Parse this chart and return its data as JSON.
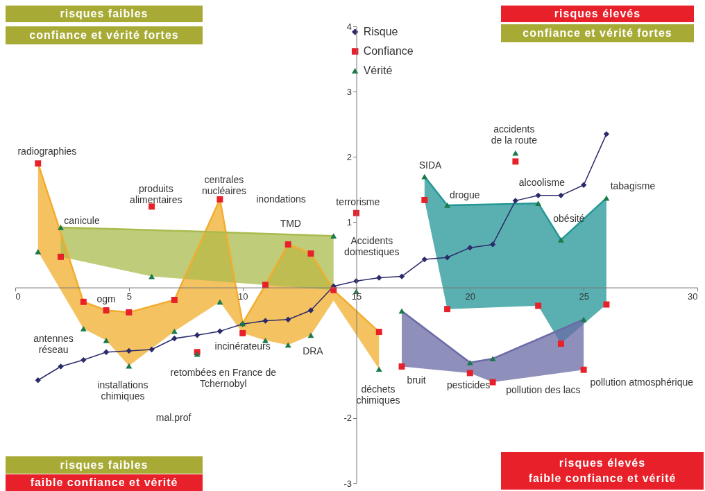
{
  "chart_data": {
    "type": "scatter",
    "xlim": [
      0,
      30
    ],
    "xticks": [
      0,
      5,
      10,
      15,
      20,
      25,
      30
    ],
    "ylim": [
      -3,
      4
    ],
    "yticks": [
      -3,
      -2,
      {
        "value": 0,
        "label": null
      },
      1,
      2,
      3,
      4
    ],
    "grid": false,
    "legend": "top",
    "series": [
      {
        "type": "line",
        "marker": "none",
        "color": "#f2ad2e",
        "x": [
          1,
          3,
          4,
          5,
          7,
          9,
          10,
          11,
          12,
          13,
          14,
          16
        ],
        "values": [
          1.9,
          -0.22,
          -0.35,
          -0.38,
          -0.19,
          1.35,
          -0.55,
          0.04,
          0.66,
          0.52,
          -0.04,
          -0.68
        ],
        "upper": [
          1.9,
          -0.22,
          -0.35,
          -0.38,
          -0.19,
          1.35,
          -0.55,
          0.04,
          0.66,
          0.52,
          -0.04,
          -0.68
        ],
        "lower": [
          0.55,
          -0.63,
          -0.81,
          -1.2,
          -0.67,
          -0.22,
          -0.7,
          -0.81,
          -0.88,
          -0.73,
          -0.2,
          -1.25
        ]
      },
      {
        "type": "line",
        "marker": "none",
        "color": "#a9bb4e",
        "x": [
          2,
          6,
          14
        ],
        "values": [
          0.92,
          0.88,
          0.79
        ],
        "upper": [
          0.92,
          0.88,
          0.79
        ],
        "lower": [
          0.47,
          0.17,
          -0.04
        ]
      },
      {
        "type": "line",
        "marker": "none",
        "color": "#239696",
        "x": [
          18,
          19,
          23,
          24,
          26
        ],
        "values": [
          1.7,
          1.26,
          1.29,
          0.73,
          1.37
        ],
        "upper": [
          1.7,
          1.26,
          1.29,
          0.73,
          1.37
        ],
        "lower": [
          1.34,
          -0.33,
          -0.28,
          -0.86,
          -0.26
        ]
      },
      {
        "type": "line",
        "marker": "none",
        "color": "#6a6aa6",
        "x": [
          17,
          20,
          21,
          25
        ],
        "values": [
          -0.36,
          -1.15,
          -1.09,
          -0.49
        ],
        "upper": [
          -0.36,
          -1.15,
          -1.09,
          -0.49
        ],
        "lower": [
          -1.21,
          -1.31,
          -1.45,
          -1.26
        ]
      },
      {
        "name": "Risque",
        "type": "line",
        "marker": "diamond",
        "color": "#2b2b6b",
        "x": [
          1,
          2,
          3,
          4,
          5,
          6,
          7,
          8,
          9,
          10,
          11,
          12,
          13,
          14,
          15,
          16,
          17,
          18,
          19,
          20,
          21,
          22,
          23,
          24,
          25,
          26
        ],
        "values": [
          -1.42,
          -1.21,
          -1.11,
          -0.99,
          -0.97,
          -0.95,
          -0.78,
          -0.73,
          -0.67,
          -0.56,
          -0.51,
          -0.49,
          -0.35,
          0.02,
          0.1,
          0.15,
          0.17,
          0.43,
          0.46,
          0.61,
          0.66,
          1.33,
          1.41,
          1.41,
          1.57,
          2.35
        ]
      },
      {
        "name": "Confiance",
        "marker": "square",
        "color": "#e8202a",
        "x": [
          1,
          2,
          3,
          4,
          5,
          6,
          7,
          8,
          9,
          10,
          11,
          12,
          13,
          14,
          15,
          16,
          17,
          18,
          19,
          20,
          21,
          22,
          23,
          24,
          25,
          26
        ],
        "values": [
          1.9,
          0.47,
          -0.22,
          -0.35,
          -0.38,
          1.24,
          -0.19,
          -0.99,
          1.35,
          -0.7,
          0.04,
          0.66,
          0.52,
          -0.04,
          1.14,
          -0.68,
          -1.21,
          1.34,
          -0.33,
          -1.31,
          -1.45,
          1.93,
          -0.28,
          -0.86,
          -1.26,
          -0.26
        ]
      },
      {
        "name": "Vérité",
        "marker": "triangle",
        "color": "#1a7a4a",
        "x": [
          1,
          2,
          3,
          4,
          5,
          6,
          7,
          8,
          9,
          10,
          11,
          12,
          13,
          14,
          15,
          16,
          17,
          18,
          19,
          20,
          21,
          22,
          23,
          24,
          25,
          26
        ],
        "values": [
          0.55,
          0.92,
          -0.63,
          -0.81,
          -1.2,
          0.17,
          -0.67,
          -1.02,
          -0.22,
          -0.55,
          -0.81,
          -0.88,
          -0.73,
          0.79,
          -0.06,
          -1.25,
          -0.36,
          1.7,
          1.26,
          -1.15,
          -1.09,
          2.06,
          1.29,
          0.73,
          -0.49,
          1.37
        ]
      }
    ],
    "annotations": [
      "risques faibles",
      "confiance et vérité fortes",
      "risques élevés",
      "confiance et vérité fortes",
      "risques faibles",
      "faible confiance et vérité",
      "risques élevés\nfaible confiance et vérité",
      "radiographies",
      "canicule",
      "antennes\nréseau",
      "ogm",
      "installations\nchimiques",
      "produits\nalimentaires",
      "mal.prof",
      "retombées en France de\nTchernobyl",
      "centrales\nnucléaires",
      "incinérateurs",
      "inondations",
      "TMD",
      "DRA",
      "terrorisme",
      "Accidents\ndomestiques",
      "déchets\nchimiques",
      "bruit",
      "SIDA",
      "drogue",
      "pesticides",
      "pollution des lacs",
      "accidents\nde la route",
      "alcoolisme",
      "obésité",
      "pollution atmosphérique",
      "tabagisme"
    ]
  }
}
